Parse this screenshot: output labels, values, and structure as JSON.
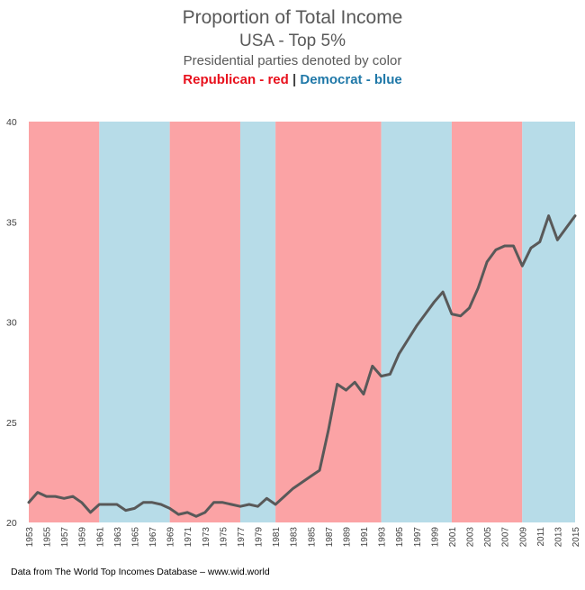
{
  "title": {
    "line1": "Proportion of Total Income",
    "line2": "USA - Top 5%",
    "line3": "Presidential parties denoted by color",
    "legend_rep": "Republican - red",
    "legend_sep": "|",
    "legend_dem": "Democrat - blue"
  },
  "source": "Data from The World Top Incomes Database – www.wid.world",
  "colors": {
    "republican": "#fba3a5",
    "democrat": "#b7dce8",
    "line": "#595959",
    "text_red": "#e8101c",
    "text_blue": "#1f78a8"
  },
  "chart_data": {
    "type": "line",
    "title": "Proportion of Total Income",
    "xlabel": "",
    "ylabel": "",
    "xlim": [
      1953,
      2015
    ],
    "ylim": [
      20,
      40
    ],
    "y_ticks": [
      20,
      25,
      30,
      35,
      40
    ],
    "x_tick_labels": [
      "1953",
      "1955",
      "1957",
      "1959",
      "1961",
      "1963",
      "1965",
      "1967",
      "1969",
      "1971",
      "1973",
      "1975",
      "1977",
      "1979",
      "1981",
      "1983",
      "1985",
      "1987",
      "1989",
      "1991",
      "1993",
      "1995",
      "1997",
      "1999",
      "2001",
      "2003",
      "2005",
      "2007",
      "2009",
      "2011",
      "2013",
      "2015"
    ],
    "grid": false,
    "background_bands": [
      {
        "party": "republican",
        "from": 1953,
        "to": 1961
      },
      {
        "party": "democrat",
        "from": 1961,
        "to": 1969
      },
      {
        "party": "republican",
        "from": 1969,
        "to": 1977
      },
      {
        "party": "democrat",
        "from": 1977,
        "to": 1981
      },
      {
        "party": "republican",
        "from": 1981,
        "to": 1993
      },
      {
        "party": "democrat",
        "from": 1993,
        "to": 2001
      },
      {
        "party": "republican",
        "from": 2001,
        "to": 2009
      },
      {
        "party": "democrat",
        "from": 2009,
        "to": 2015
      }
    ],
    "series": [
      {
        "x": [
          1953,
          1954,
          1955,
          1956,
          1957,
          1958,
          1959,
          1960,
          1961,
          1962,
          1963,
          1964,
          1965,
          1966,
          1967,
          1968,
          1969,
          1970,
          1971,
          1972,
          1973,
          1974,
          1975,
          1976,
          1977,
          1978,
          1979,
          1980,
          1981,
          1982,
          1983,
          1984,
          1985,
          1986,
          1987,
          1988,
          1989,
          1990,
          1991,
          1992,
          1993,
          1994,
          1995,
          1996,
          1997,
          1998,
          1999,
          2000,
          2001,
          2002,
          2003,
          2004,
          2005,
          2006,
          2007,
          2008,
          2009,
          2010,
          2011,
          2012,
          2013,
          2014,
          2015
        ],
        "values": [
          21.0,
          21.5,
          21.3,
          21.3,
          21.2,
          21.3,
          21.0,
          20.5,
          20.9,
          20.9,
          20.9,
          20.6,
          20.7,
          21.0,
          21.0,
          20.9,
          20.7,
          20.4,
          20.5,
          20.3,
          20.5,
          21.0,
          21.0,
          20.9,
          20.8,
          20.9,
          20.8,
          21.2,
          20.9,
          21.3,
          21.7,
          22.0,
          22.3,
          22.6,
          24.6,
          26.9,
          26.6,
          27.0,
          26.4,
          27.8,
          27.3,
          27.4,
          28.4,
          29.1,
          29.8,
          30.4,
          31.0,
          31.5,
          30.4,
          30.3,
          30.7,
          31.7,
          33.0,
          33.6,
          33.8,
          33.8,
          32.8,
          33.7,
          34.0,
          35.3,
          34.1,
          34.7,
          35.3
        ]
      }
    ]
  }
}
